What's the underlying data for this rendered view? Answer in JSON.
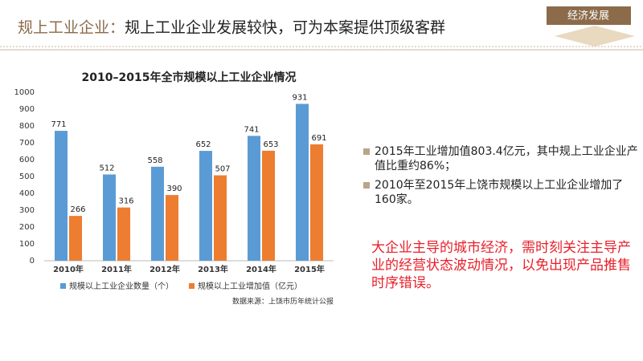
{
  "header": {
    "title_lead": "规上工业企业：",
    "title_main": "规上工业企业发展较快，可为本案提供顶级客群",
    "tag": "经济发展"
  },
  "chart_data": {
    "type": "bar",
    "title": "2010–2015年全市规模以上工业企业情况",
    "categories": [
      "2010年",
      "2011年",
      "2012年",
      "2013年",
      "2014年",
      "2015年"
    ],
    "series": [
      {
        "name": "规模以上工业企业数量（个）",
        "color": "#5b9bd5",
        "values": [
          771,
          512,
          558,
          652,
          741,
          931
        ]
      },
      {
        "name": "规模以上工业增加值（亿元）",
        "color": "#ed7d31",
        "values": [
          266,
          316,
          390,
          507,
          653,
          691
        ]
      }
    ],
    "ylim": [
      0,
      1000
    ],
    "yticks": [
      0,
      100,
      200,
      300,
      400,
      500,
      600,
      700,
      800,
      900,
      1000
    ],
    "source": "数据来源：上饶市历年统计公报"
  },
  "bullets": [
    "2015年工业增加值803.4亿元，其中规上工业企业产值比重约86%；",
    "2010年至2015年上饶市规模以上工业企业增加了160家。"
  ],
  "note": "大企业主导的城市经济，需时刻关注主导产业的经营状态波动情况，以免出现产品推售时序错误。"
}
